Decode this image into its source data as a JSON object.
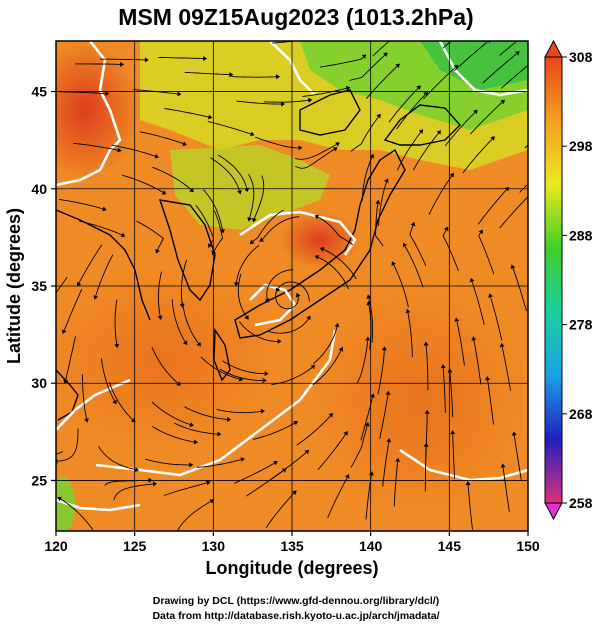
{
  "chart_data": {
    "type": "heatmap",
    "title": "MSM 09Z15Aug2023 (1013.2hPa)",
    "xlabel": "Longitude (degrees)",
    "ylabel": "Latitude  (degrees)",
    "xlim": [
      120,
      150
    ],
    "ylim": [
      22.4,
      47.6
    ],
    "x_ticks": [
      "120",
      "125",
      "130",
      "135",
      "140",
      "145",
      "150"
    ],
    "y_ticks": [
      "25",
      "30",
      "35",
      "40",
      "45"
    ],
    "x_tick_values": [
      120,
      125,
      130,
      135,
      140,
      145,
      150
    ],
    "y_tick_values": [
      25,
      30,
      35,
      40,
      45
    ],
    "grid": true,
    "colorbar": {
      "range": [
        258,
        308
      ],
      "ticks": [
        "308",
        "298",
        "288",
        "278",
        "268",
        "258"
      ],
      "tick_values": [
        308,
        298,
        288,
        278,
        268,
        258
      ],
      "colors": [
        "#e0307a",
        "#2020c0",
        "#1aa0e8",
        "#1ad0a0",
        "#3fcf28",
        "#ece820",
        "#f6a020",
        "#e84818"
      ]
    },
    "field": "temperature (K) with wind streamlines",
    "typhoon_center": {
      "lon": 134.8,
      "lat": 34.4
    }
  },
  "credits": {
    "line1": "Drawing by DCL (https://www.gfd-dennou.org/library/dcl/)",
    "line2": "Data from http://database.rish.kyoto-u.ac.jp/arch/jmadata/"
  }
}
